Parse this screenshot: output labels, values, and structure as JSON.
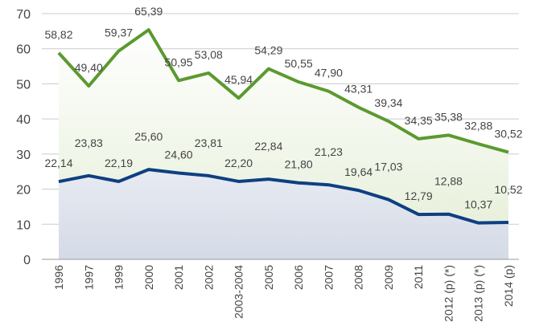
{
  "chart_data": {
    "type": "line",
    "categories": [
      "1996",
      "1997",
      "1999",
      "2000",
      "2001",
      "2002",
      "2003-2004",
      "2005",
      "2006",
      "2007",
      "2008",
      "2009",
      "2011",
      "2012 (p) (*)",
      "2013 (p) (*)",
      "2014 (p)"
    ],
    "series": [
      {
        "color": "#5b9a2f",
        "area_color": "#eef4e4",
        "values": [
          58.82,
          49.4,
          59.37,
          65.39,
          50.95,
          53.08,
          45.94,
          54.29,
          50.55,
          47.9,
          43.31,
          39.34,
          34.35,
          35.38,
          32.88,
          30.52
        ],
        "value_labels": [
          "58,82",
          "49,40",
          "59,37",
          "65,39",
          "50,95",
          "53,08",
          "45,94",
          "54,29",
          "50,55",
          "47,90",
          "43,31",
          "39,34",
          "34,35",
          "35,38",
          "32,88",
          "30,52"
        ]
      },
      {
        "color": "#0e3f82",
        "area_color": "#e4e8f0",
        "values": [
          22.14,
          23.83,
          22.19,
          25.6,
          24.6,
          23.81,
          22.2,
          22.84,
          21.8,
          21.23,
          19.64,
          17.03,
          12.79,
          12.88,
          10.37,
          10.52
        ],
        "value_labels": [
          "22,14",
          "23,83",
          "22,19",
          "25,60",
          "24,60",
          "23,81",
          "22,20",
          "22,84",
          "21,80",
          "21,23",
          "19,64",
          "17,03",
          "12,79",
          "12,88",
          "10,37",
          "10,52"
        ]
      }
    ],
    "ylim": [
      0,
      70
    ],
    "yticks": [
      0,
      10,
      20,
      30,
      40,
      50,
      60,
      70
    ],
    "grid": true
  }
}
